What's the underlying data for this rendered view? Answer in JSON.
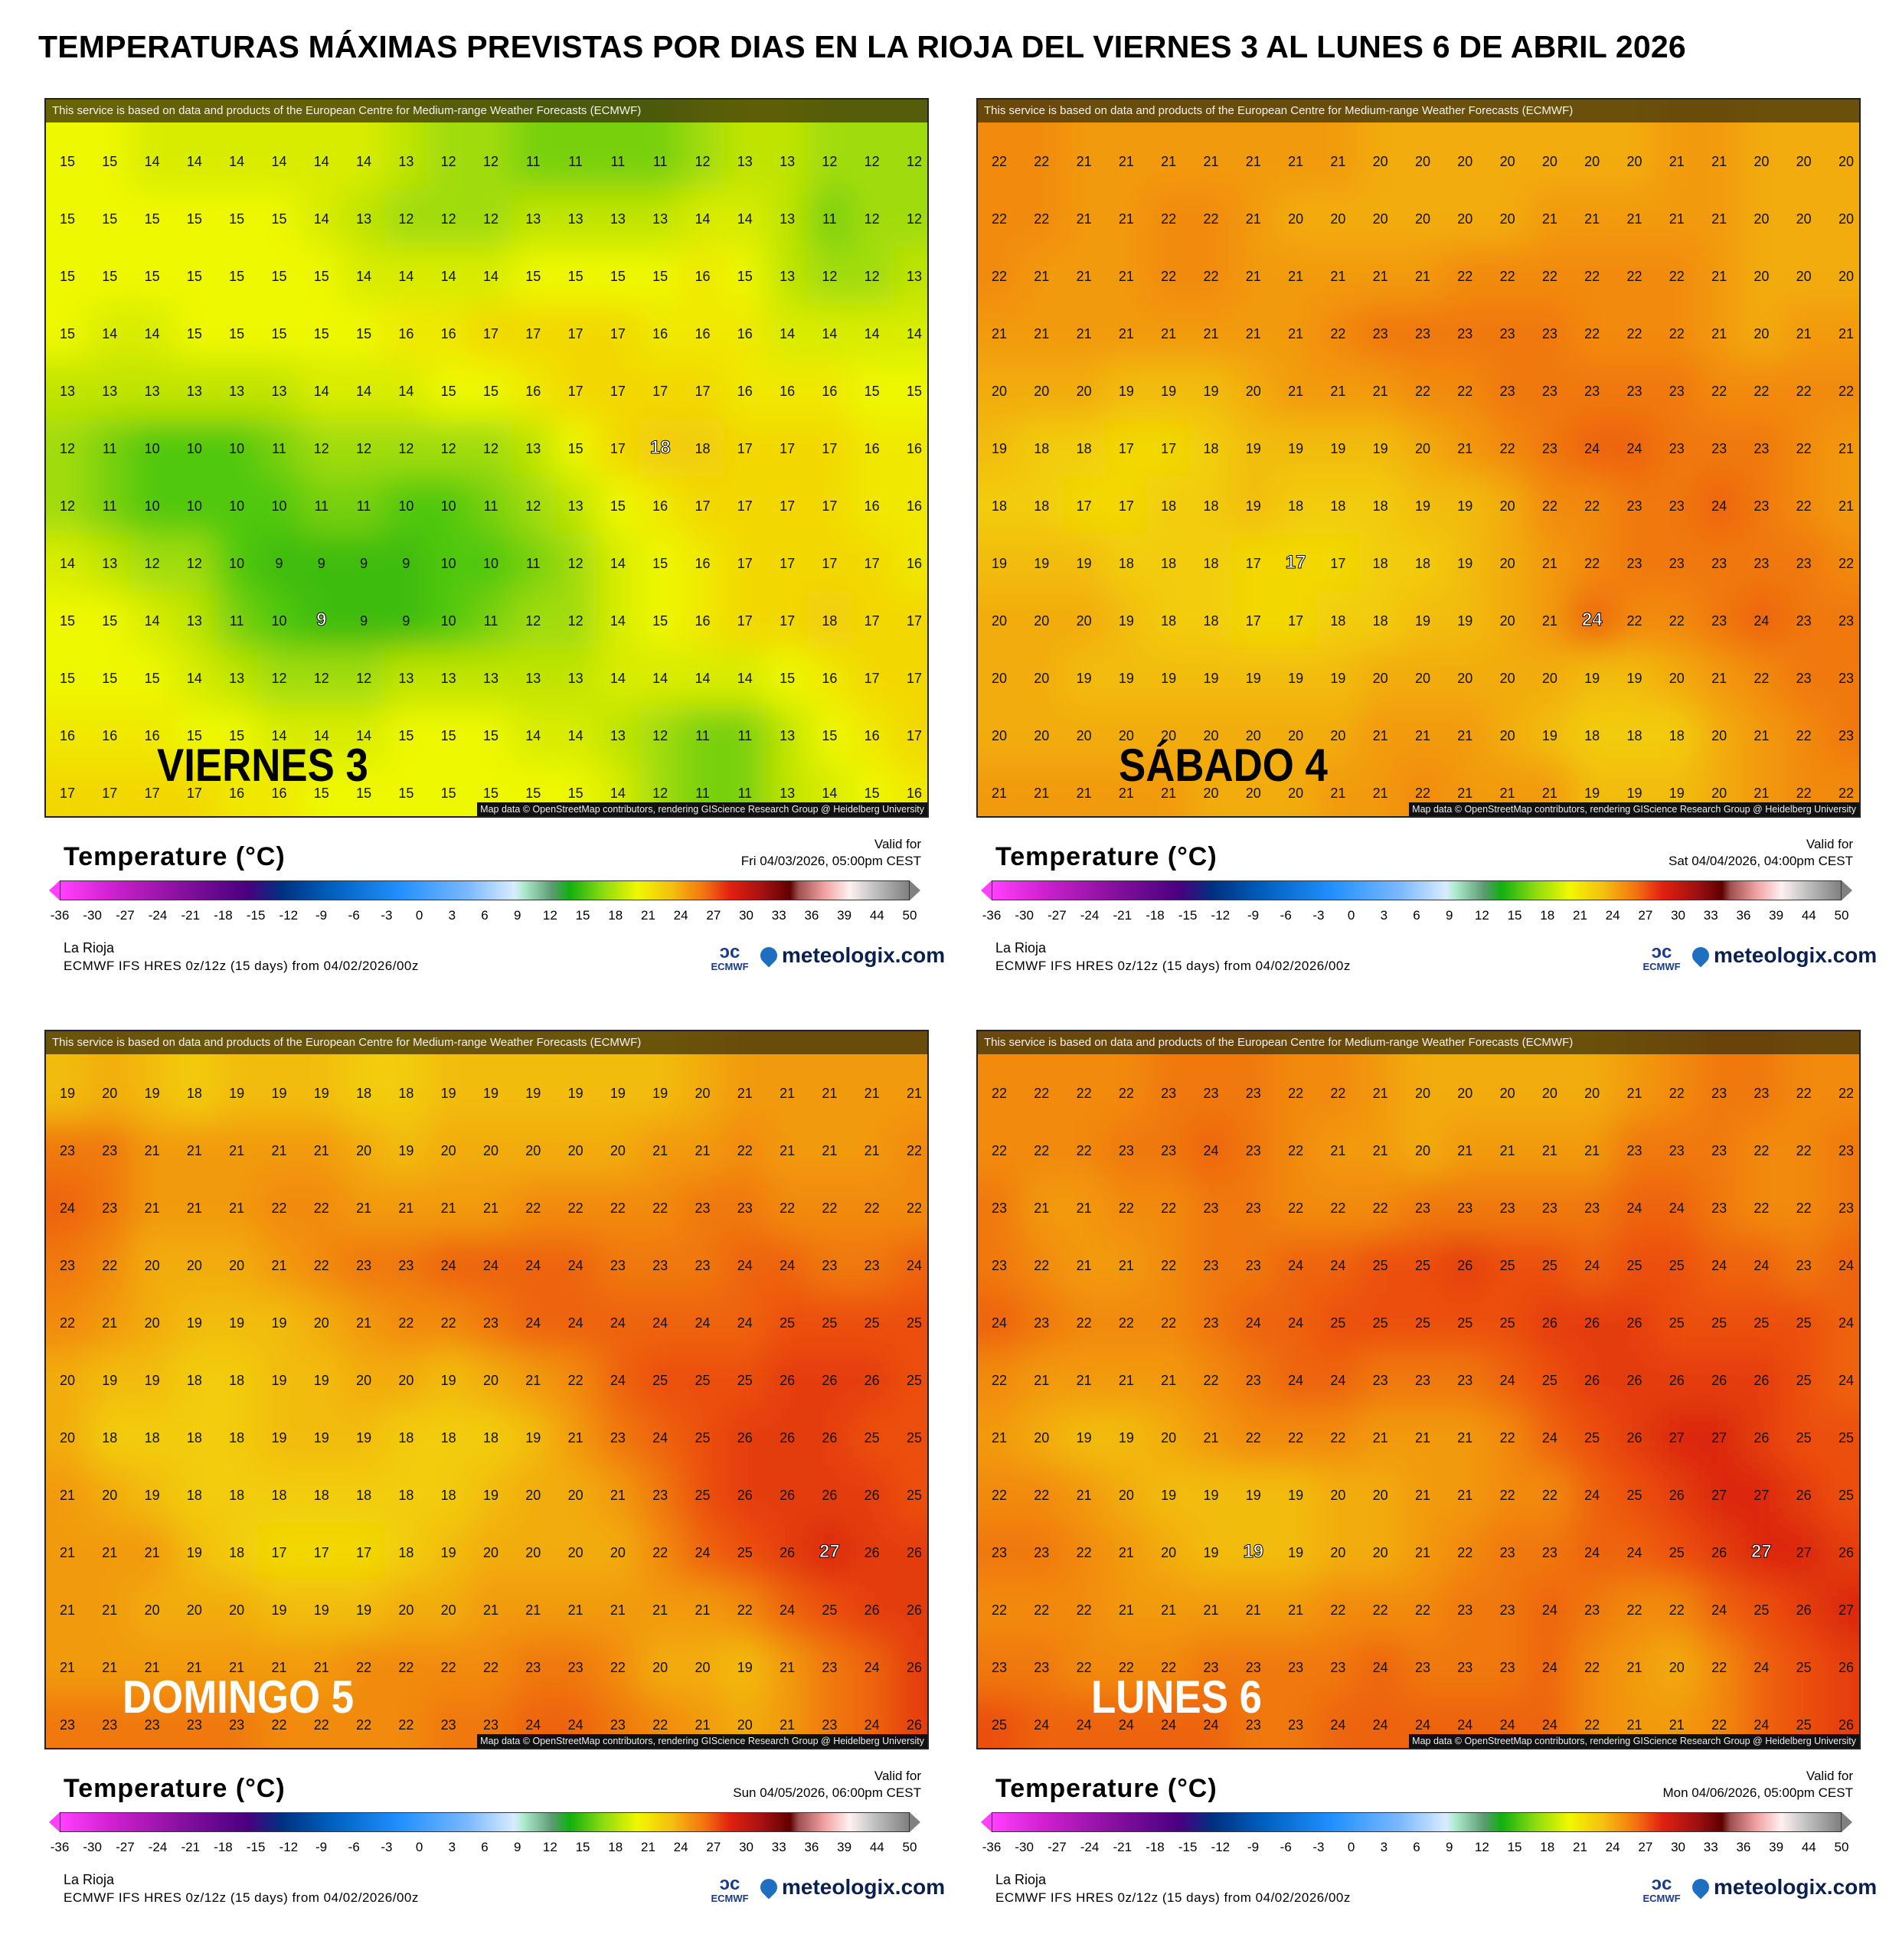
{
  "title": "TEMPERATURAS MÁXIMAS PREVISTAS POR DIAS EN LA RIOJA DEL VIERNES 3 AL LUNES 6 DE ABRIL 2026",
  "banner": "This service is based on data and products of the European Centre for Medium-range Weather Forecasts (ECMWF)",
  "attribution": "Map data © OpenStreetMap contributors, rendering GIScience Research Group @ Heidelberg University",
  "legend": {
    "title": "Temperature (°C)",
    "valid_label": "Valid for",
    "ticks": [
      "-36",
      "-30",
      "-27",
      "-24",
      "-21",
      "-18",
      "-15",
      "-12",
      "-9",
      "-6",
      "-3",
      "0",
      "3",
      "6",
      "9",
      "12",
      "15",
      "18",
      "21",
      "24",
      "27",
      "30",
      "33",
      "36",
      "39",
      "44",
      "50"
    ],
    "location": "La Rioja",
    "model": "ECMWF IFS HRES 0z/12z (15 days) from  04/02/2026/00z",
    "ecmwf_logo": "ECMWF",
    "brand": "meteologix.com"
  },
  "chart_data": [
    {
      "type": "heatmap",
      "title": "VIERNES 3",
      "label_color": "#000000",
      "valid_date": "Fri 04/03/2026, 05:00pm CEST",
      "unit": "°C",
      "highlight": [
        [
          5,
          14
        ],
        [
          8,
          6
        ]
      ],
      "grid": [
        [
          15,
          15,
          14,
          14,
          14,
          14,
          14,
          14,
          13,
          12,
          12,
          11,
          11,
          11,
          11,
          12,
          13,
          13,
          12,
          12,
          12
        ],
        [
          15,
          15,
          15,
          15,
          15,
          15,
          14,
          13,
          12,
          12,
          12,
          13,
          13,
          13,
          13,
          14,
          14,
          13,
          11,
          12,
          12
        ],
        [
          15,
          15,
          15,
          15,
          15,
          15,
          15,
          14,
          14,
          14,
          14,
          15,
          15,
          15,
          15,
          16,
          15,
          13,
          12,
          12,
          13
        ],
        [
          15,
          14,
          14,
          15,
          15,
          15,
          15,
          15,
          16,
          16,
          17,
          17,
          17,
          17,
          16,
          16,
          16,
          14,
          14,
          14,
          14
        ],
        [
          13,
          13,
          13,
          13,
          13,
          13,
          14,
          14,
          14,
          15,
          15,
          16,
          17,
          17,
          17,
          17,
          16,
          16,
          16,
          15,
          15
        ],
        [
          12,
          11,
          10,
          10,
          10,
          11,
          12,
          12,
          12,
          12,
          12,
          13,
          15,
          17,
          18,
          18,
          17,
          17,
          17,
          16,
          16
        ],
        [
          12,
          11,
          10,
          10,
          10,
          10,
          11,
          11,
          10,
          10,
          11,
          12,
          13,
          15,
          16,
          17,
          17,
          17,
          17,
          16,
          16
        ],
        [
          14,
          13,
          12,
          12,
          10,
          9,
          9,
          9,
          9,
          10,
          10,
          11,
          12,
          14,
          15,
          16,
          17,
          17,
          17,
          17,
          16
        ],
        [
          15,
          15,
          14,
          13,
          11,
          10,
          9,
          9,
          9,
          10,
          11,
          12,
          12,
          14,
          15,
          16,
          17,
          17,
          18,
          17,
          17
        ],
        [
          15,
          15,
          15,
          14,
          13,
          12,
          12,
          12,
          13,
          13,
          13,
          13,
          13,
          14,
          14,
          14,
          14,
          15,
          16,
          17,
          17
        ],
        [
          16,
          16,
          16,
          15,
          15,
          14,
          14,
          14,
          15,
          15,
          15,
          14,
          14,
          13,
          12,
          11,
          11,
          13,
          15,
          16,
          17
        ],
        [
          17,
          17,
          17,
          17,
          16,
          16,
          15,
          15,
          15,
          15,
          15,
          15,
          15,
          14,
          12,
          11,
          11,
          13,
          14,
          15,
          16
        ]
      ]
    },
    {
      "type": "heatmap",
      "title": "SÁBADO 4",
      "label_color": "#000000",
      "valid_date": "Sat 04/04/2026, 04:00pm CEST",
      "unit": "°C",
      "highlight": [
        [
          7,
          7
        ],
        [
          8,
          14
        ]
      ],
      "grid": [
        [
          22,
          22,
          21,
          21,
          21,
          21,
          21,
          21,
          21,
          20,
          20,
          20,
          20,
          20,
          20,
          20,
          21,
          21,
          20,
          20,
          20
        ],
        [
          22,
          22,
          21,
          21,
          22,
          22,
          21,
          20,
          20,
          20,
          20,
          20,
          20,
          21,
          21,
          21,
          21,
          21,
          20,
          20,
          20
        ],
        [
          22,
          21,
          21,
          21,
          22,
          22,
          21,
          21,
          21,
          21,
          21,
          22,
          22,
          22,
          22,
          22,
          22,
          21,
          20,
          20,
          20
        ],
        [
          21,
          21,
          21,
          21,
          21,
          21,
          21,
          21,
          22,
          23,
          23,
          23,
          23,
          23,
          22,
          22,
          22,
          21,
          20,
          21,
          21
        ],
        [
          20,
          20,
          20,
          19,
          19,
          19,
          20,
          21,
          21,
          21,
          22,
          22,
          23,
          23,
          23,
          23,
          23,
          22,
          22,
          22,
          22
        ],
        [
          19,
          18,
          18,
          17,
          17,
          18,
          19,
          19,
          19,
          19,
          20,
          21,
          22,
          23,
          24,
          24,
          23,
          23,
          23,
          22,
          21
        ],
        [
          18,
          18,
          17,
          17,
          18,
          18,
          19,
          18,
          18,
          18,
          19,
          19,
          20,
          22,
          22,
          23,
          23,
          24,
          23,
          22,
          21
        ],
        [
          19,
          19,
          19,
          18,
          18,
          18,
          17,
          17,
          17,
          18,
          18,
          19,
          20,
          21,
          22,
          23,
          23,
          23,
          23,
          23,
          22
        ],
        [
          20,
          20,
          20,
          19,
          18,
          18,
          17,
          17,
          18,
          18,
          19,
          19,
          20,
          21,
          24,
          22,
          22,
          23,
          24,
          23,
          23
        ],
        [
          20,
          20,
          19,
          19,
          19,
          19,
          19,
          19,
          19,
          20,
          20,
          20,
          20,
          20,
          19,
          19,
          20,
          21,
          22,
          23,
          23
        ],
        [
          20,
          20,
          20,
          20,
          20,
          20,
          20,
          20,
          20,
          21,
          21,
          21,
          20,
          19,
          18,
          18,
          18,
          20,
          21,
          22,
          23
        ],
        [
          21,
          21,
          21,
          21,
          21,
          20,
          20,
          20,
          21,
          21,
          22,
          21,
          21,
          21,
          19,
          19,
          19,
          20,
          21,
          22,
          22
        ]
      ]
    },
    {
      "type": "heatmap",
      "title": "DOMINGO 5",
      "label_color": "#ffffff",
      "valid_date": "Sun 04/05/2026, 06:00pm CEST",
      "unit": "°C",
      "highlight": [
        [
          8,
          18
        ]
      ],
      "grid": [
        [
          19,
          20,
          19,
          18,
          19,
          19,
          19,
          18,
          18,
          19,
          19,
          19,
          19,
          19,
          19,
          20,
          21,
          21,
          21,
          21,
          21
        ],
        [
          23,
          23,
          21,
          21,
          21,
          21,
          21,
          20,
          19,
          20,
          20,
          20,
          20,
          20,
          21,
          21,
          22,
          21,
          21,
          21,
          22
        ],
        [
          24,
          23,
          21,
          21,
          21,
          22,
          22,
          21,
          21,
          21,
          21,
          22,
          22,
          22,
          22,
          23,
          23,
          22,
          22,
          22,
          22
        ],
        [
          23,
          22,
          20,
          20,
          20,
          21,
          22,
          23,
          23,
          24,
          24,
          24,
          24,
          23,
          23,
          23,
          24,
          24,
          23,
          23,
          24
        ],
        [
          22,
          21,
          20,
          19,
          19,
          19,
          20,
          21,
          22,
          22,
          23,
          24,
          24,
          24,
          24,
          24,
          24,
          25,
          25,
          25,
          25
        ],
        [
          20,
          19,
          19,
          18,
          18,
          19,
          19,
          20,
          20,
          19,
          20,
          21,
          22,
          24,
          25,
          25,
          25,
          26,
          26,
          26,
          25
        ],
        [
          20,
          18,
          18,
          18,
          18,
          19,
          19,
          19,
          18,
          18,
          18,
          19,
          21,
          23,
          24,
          25,
          26,
          26,
          26,
          25,
          25
        ],
        [
          21,
          20,
          19,
          18,
          18,
          18,
          18,
          18,
          18,
          18,
          19,
          20,
          20,
          21,
          23,
          25,
          26,
          26,
          26,
          26,
          25
        ],
        [
          21,
          21,
          21,
          19,
          18,
          17,
          17,
          17,
          18,
          19,
          20,
          20,
          20,
          20,
          22,
          24,
          25,
          26,
          27,
          26,
          26
        ],
        [
          21,
          21,
          20,
          20,
          20,
          19,
          19,
          19,
          20,
          20,
          21,
          21,
          21,
          21,
          21,
          21,
          22,
          24,
          25,
          26,
          26
        ],
        [
          21,
          21,
          21,
          21,
          21,
          21,
          21,
          22,
          22,
          22,
          22,
          23,
          23,
          22,
          20,
          20,
          19,
          21,
          23,
          24,
          26
        ],
        [
          23,
          23,
          23,
          23,
          23,
          22,
          22,
          22,
          22,
          23,
          23,
          24,
          24,
          23,
          22,
          21,
          20,
          21,
          23,
          24,
          26
        ]
      ]
    },
    {
      "type": "heatmap",
      "title": "LUNES 6",
      "label_color": "#ffffff",
      "valid_date": "Mon 04/06/2026, 05:00pm CEST",
      "unit": "°C",
      "highlight": [
        [
          8,
          6
        ],
        [
          8,
          18
        ]
      ],
      "grid": [
        [
          22,
          22,
          22,
          22,
          23,
          23,
          23,
          22,
          22,
          21,
          20,
          20,
          20,
          20,
          20,
          21,
          22,
          23,
          23,
          22,
          22
        ],
        [
          22,
          22,
          22,
          23,
          23,
          24,
          23,
          22,
          21,
          21,
          20,
          21,
          21,
          21,
          21,
          23,
          23,
          23,
          22,
          22,
          23
        ],
        [
          23,
          21,
          21,
          22,
          22,
          23,
          23,
          22,
          22,
          22,
          23,
          23,
          23,
          23,
          23,
          24,
          24,
          23,
          22,
          22,
          23
        ],
        [
          23,
          22,
          21,
          21,
          22,
          23,
          23,
          24,
          24,
          25,
          25,
          26,
          25,
          25,
          24,
          25,
          25,
          24,
          24,
          23,
          24
        ],
        [
          24,
          23,
          22,
          22,
          22,
          23,
          24,
          24,
          25,
          25,
          25,
          25,
          25,
          26,
          26,
          26,
          25,
          25,
          25,
          25,
          24
        ],
        [
          22,
          21,
          21,
          21,
          21,
          22,
          23,
          24,
          24,
          23,
          23,
          23,
          24,
          25,
          26,
          26,
          26,
          26,
          26,
          25,
          24
        ],
        [
          21,
          20,
          19,
          19,
          20,
          21,
          22,
          22,
          22,
          21,
          21,
          21,
          22,
          24,
          25,
          26,
          27,
          27,
          26,
          25,
          25
        ],
        [
          22,
          22,
          21,
          20,
          19,
          19,
          19,
          19,
          20,
          20,
          21,
          21,
          22,
          22,
          24,
          25,
          26,
          27,
          27,
          26,
          25
        ],
        [
          23,
          23,
          22,
          21,
          20,
          19,
          19,
          19,
          20,
          20,
          21,
          22,
          23,
          23,
          24,
          24,
          25,
          26,
          27,
          27,
          26
        ],
        [
          22,
          22,
          22,
          21,
          21,
          21,
          21,
          21,
          22,
          22,
          22,
          23,
          23,
          24,
          23,
          22,
          22,
          24,
          25,
          26,
          27
        ],
        [
          23,
          23,
          22,
          22,
          22,
          23,
          23,
          23,
          23,
          24,
          23,
          23,
          23,
          24,
          22,
          21,
          20,
          22,
          24,
          25,
          26
        ],
        [
          25,
          24,
          24,
          24,
          24,
          24,
          23,
          23,
          24,
          24,
          24,
          24,
          24,
          24,
          22,
          21,
          21,
          22,
          24,
          25,
          26
        ]
      ]
    }
  ]
}
